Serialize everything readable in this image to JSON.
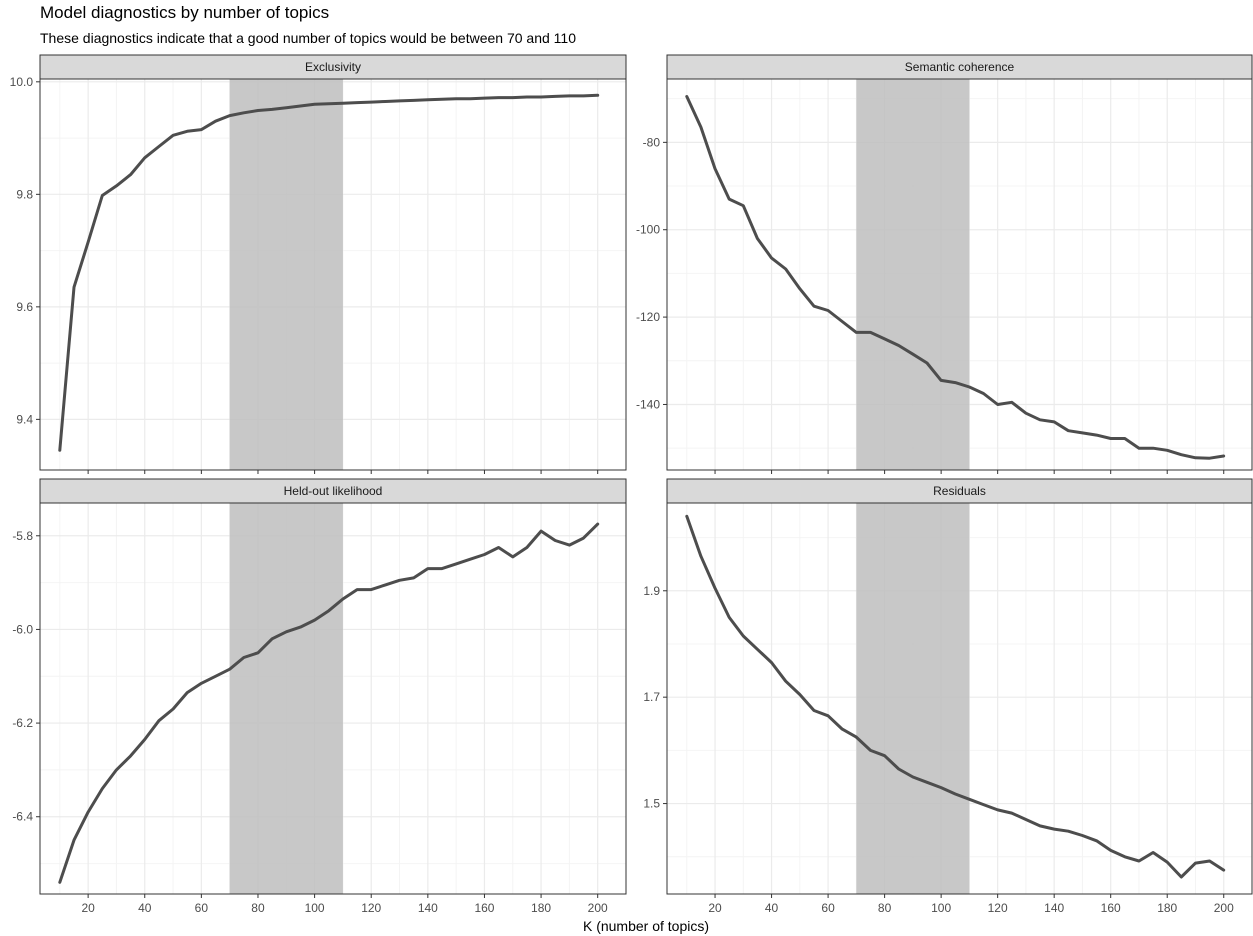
{
  "title": "Model diagnostics by number of topics",
  "subtitle": "These diagnostics indicate that a good number of topics would be between 70 and 110",
  "xlabel": "K (number of topics)",
  "chart_data": {
    "type": "line",
    "title": "Model diagnostics by number of topics",
    "subtitle": "These diagnostics indicate that a good number of topics would be between 70 and 110",
    "xlabel": "K (number of topics)",
    "highlight_band": [
      70,
      110
    ],
    "grid": true,
    "facets": [
      {
        "name": "Exclusivity",
        "xlim": [
          3,
          210
        ],
        "xticks": [
          20,
          40,
          60,
          80,
          100,
          120,
          140,
          160,
          180,
          200
        ],
        "ylim": [
          9.31,
          10.005
        ],
        "yticks": [
          9.4,
          9.6,
          9.8,
          10.0
        ],
        "ytick_labels": [
          "9.4",
          "9.6",
          "9.8",
          "10.0"
        ],
        "x": [
          10,
          15,
          20,
          25,
          30,
          35,
          40,
          45,
          50,
          55,
          60,
          65,
          70,
          75,
          80,
          85,
          90,
          95,
          100,
          105,
          110,
          115,
          120,
          125,
          130,
          135,
          140,
          145,
          150,
          155,
          160,
          165,
          170,
          175,
          180,
          185,
          190,
          195,
          200
        ],
        "values": [
          9.345,
          9.635,
          9.715,
          9.798,
          9.815,
          9.835,
          9.865,
          9.885,
          9.905,
          9.912,
          9.915,
          9.93,
          9.94,
          9.945,
          9.949,
          9.951,
          9.954,
          9.957,
          9.96,
          9.961,
          9.962,
          9.963,
          9.964,
          9.965,
          9.966,
          9.967,
          9.968,
          9.969,
          9.97,
          9.97,
          9.971,
          9.972,
          9.972,
          9.973,
          9.973,
          9.974,
          9.975,
          9.975,
          9.976
        ]
      },
      {
        "name": "Semantic coherence",
        "xlim": [
          3,
          210
        ],
        "xticks": [
          20,
          40,
          60,
          80,
          100,
          120,
          140,
          160,
          180,
          200
        ],
        "ylim": [
          -155,
          -65.5
        ],
        "yticks": [
          -140,
          -120,
          -100,
          -80
        ],
        "ytick_labels": [
          "-140",
          "-120",
          "-100",
          "-80"
        ],
        "x": [
          10,
          15,
          20,
          25,
          30,
          35,
          40,
          45,
          50,
          55,
          60,
          65,
          70,
          75,
          80,
          85,
          90,
          95,
          100,
          105,
          110,
          115,
          120,
          125,
          130,
          135,
          140,
          145,
          150,
          155,
          160,
          165,
          170,
          175,
          180,
          185,
          190,
          195,
          200
        ],
        "values": [
          -69.5,
          -76.5,
          -86,
          -93,
          -94.5,
          -102,
          -106.5,
          -109,
          -113.5,
          -117.5,
          -118.5,
          -121,
          -123.5,
          -123.5,
          -125,
          -126.5,
          -128.5,
          -130.5,
          -134.5,
          -135,
          -136,
          -137.5,
          -140,
          -139.5,
          -142,
          -143.5,
          -144,
          -146,
          -146.5,
          -147,
          -147.8,
          -147.8,
          -150,
          -150,
          -150.5,
          -151.5,
          -152.2,
          -152.3,
          -151.8
        ]
      },
      {
        "name": "Held-out likelihood",
        "xlim": [
          3,
          210
        ],
        "xticks": [
          20,
          40,
          60,
          80,
          100,
          120,
          140,
          160,
          180,
          200
        ],
        "ylim": [
          -6.565,
          -5.73
        ],
        "yticks": [
          -6.4,
          -6.2,
          -6.0,
          -5.8
        ],
        "ytick_labels": [
          "-6.4",
          "-6.2",
          "-6.0",
          "-5.8"
        ],
        "x": [
          10,
          15,
          20,
          25,
          30,
          35,
          40,
          45,
          50,
          55,
          60,
          65,
          70,
          75,
          80,
          85,
          90,
          95,
          100,
          105,
          110,
          115,
          120,
          125,
          130,
          135,
          140,
          145,
          150,
          155,
          160,
          165,
          170,
          175,
          180,
          185,
          190,
          195,
          200
        ],
        "values": [
          -6.54,
          -6.45,
          -6.39,
          -6.34,
          -6.3,
          -6.27,
          -6.235,
          -6.195,
          -6.17,
          -6.135,
          -6.115,
          -6.1,
          -6.085,
          -6.06,
          -6.05,
          -6.02,
          -6.005,
          -5.995,
          -5.98,
          -5.96,
          -5.935,
          -5.915,
          -5.915,
          -5.905,
          -5.895,
          -5.89,
          -5.87,
          -5.87,
          -5.86,
          -5.85,
          -5.84,
          -5.825,
          -5.845,
          -5.825,
          -5.79,
          -5.81,
          -5.82,
          -5.805,
          -5.775
        ]
      },
      {
        "name": "Residuals",
        "xlim": [
          3,
          210
        ],
        "xticks": [
          20,
          40,
          60,
          80,
          100,
          120,
          140,
          160,
          180,
          200
        ],
        "ylim": [
          1.33,
          2.065
        ],
        "yticks": [
          1.5,
          1.7,
          1.9
        ],
        "ytick_labels": [
          "1.5",
          "1.7",
          "1.9"
        ],
        "x": [
          10,
          15,
          20,
          25,
          30,
          35,
          40,
          45,
          50,
          55,
          60,
          65,
          70,
          75,
          80,
          85,
          90,
          95,
          100,
          105,
          110,
          115,
          120,
          125,
          130,
          135,
          140,
          145,
          150,
          155,
          160,
          165,
          170,
          175,
          180,
          185,
          190,
          195,
          200
        ],
        "values": [
          2.04,
          1.965,
          1.905,
          1.85,
          1.815,
          1.79,
          1.765,
          1.73,
          1.705,
          1.675,
          1.665,
          1.64,
          1.625,
          1.6,
          1.59,
          1.565,
          1.55,
          1.54,
          1.53,
          1.518,
          1.508,
          1.498,
          1.488,
          1.482,
          1.47,
          1.458,
          1.452,
          1.448,
          1.44,
          1.43,
          1.412,
          1.4,
          1.392,
          1.408,
          1.39,
          1.362,
          1.388,
          1.392,
          1.375
        ]
      }
    ]
  },
  "colors": {
    "line": "#4d4d4d",
    "band": "#bebebe",
    "strip_fill": "#d9d9d9",
    "panel_border": "#333333",
    "grid_major": "#ebebeb",
    "grid_minor": "#f4f4f4",
    "tick_text": "#4d4d4d"
  }
}
